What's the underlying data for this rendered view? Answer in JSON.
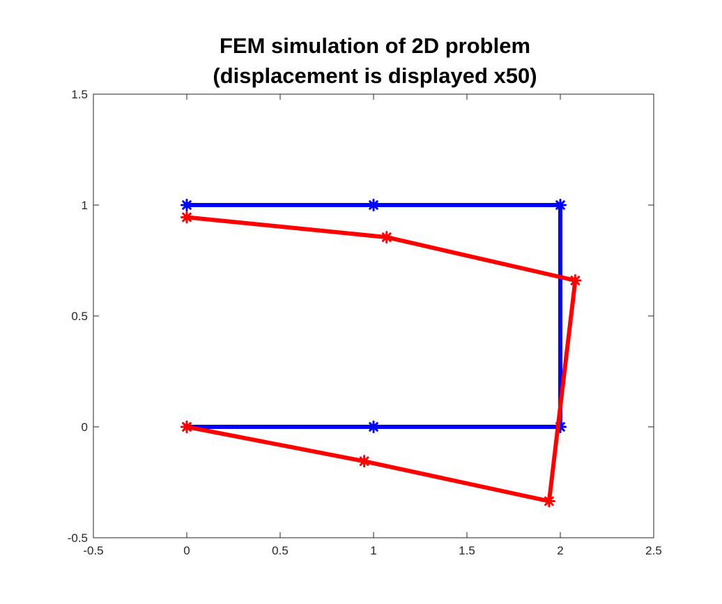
{
  "chart_data": {
    "type": "line",
    "title": [
      "FEM simulation of 2D problem",
      "(displacement is displayed x50)"
    ],
    "xlabel": "",
    "ylabel": "",
    "xlim": [
      -0.5,
      2.5
    ],
    "ylim": [
      -0.5,
      1.5
    ],
    "xticks": [
      -0.5,
      0,
      0.5,
      1,
      1.5,
      2,
      2.5
    ],
    "yticks": [
      -0.5,
      0,
      0.5,
      1,
      1.5
    ],
    "xtick_labels": [
      "-0.5",
      "0",
      "0.5",
      "1",
      "1.5",
      "2",
      "2.5"
    ],
    "ytick_labels": [
      "-0.5",
      "0",
      "0.5",
      "1",
      "1.5"
    ],
    "grid": false,
    "legend": "none",
    "series": [
      {
        "color": "#0000ff",
        "marker": "asterisk",
        "x": [
          0,
          1,
          2,
          2,
          1,
          0
        ],
        "y": [
          1,
          1,
          1,
          0,
          0,
          0
        ]
      },
      {
        "color": "#ff0000",
        "marker": "asterisk",
        "x": [
          0,
          1.07,
          2.08,
          1.94,
          0.95,
          0
        ],
        "y": [
          0.945,
          0.855,
          0.66,
          -0.335,
          -0.155,
          0
        ]
      }
    ]
  }
}
